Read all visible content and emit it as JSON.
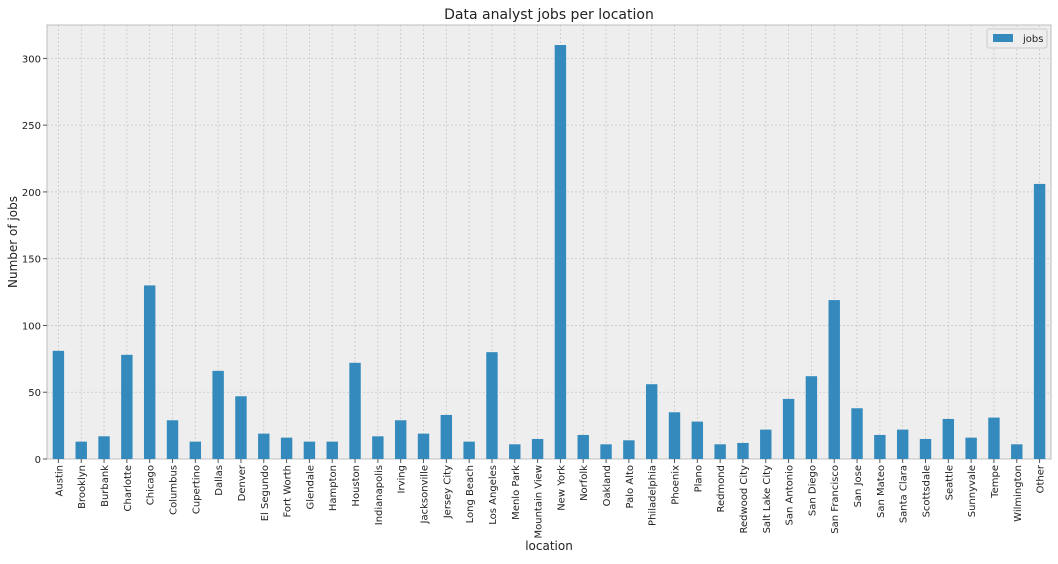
{
  "chart_data": {
    "type": "bar",
    "title": "Data analyst jobs per location",
    "xlabel": "location",
    "ylabel": "Number of jobs",
    "ylim": [
      0,
      325
    ],
    "yticks": [
      0,
      50,
      100,
      150,
      200,
      250,
      300
    ],
    "grid": true,
    "legend": {
      "position": "top-right",
      "entries": [
        "jobs"
      ]
    },
    "bar_color": "#348ABD",
    "background": "#EEEEEE",
    "categories": [
      "Austin",
      "Brooklyn",
      "Burbank",
      "Charlotte",
      "Chicago",
      "Columbus",
      "Cupertino",
      "Dallas",
      "Denver",
      "El Segundo",
      "Fort Worth",
      "Glendale",
      "Hampton",
      "Houston",
      "Indianapolis",
      "Irving",
      "Jacksonville",
      "Jersey City",
      "Long Beach",
      "Los Angeles",
      "Menlo Park",
      "Mountain View",
      "New York",
      "Norfolk",
      "Oakland",
      "Palo Alto",
      "Philadelphia",
      "Phoenix",
      "Plano",
      "Redmond",
      "Redwood City",
      "Salt Lake City",
      "San Antonio",
      "San Diego",
      "San Francisco",
      "San Jose",
      "San Mateo",
      "Santa Clara",
      "Scottsdale",
      "Seattle",
      "Sunnyvale",
      "Tempe",
      "Wilmington",
      "Other"
    ],
    "series": [
      {
        "name": "jobs",
        "values": [
          81,
          13,
          17,
          78,
          130,
          29,
          13,
          66,
          47,
          19,
          16,
          13,
          13,
          72,
          17,
          29,
          19,
          33,
          13,
          80,
          11,
          15,
          310,
          18,
          11,
          14,
          56,
          35,
          28,
          11,
          12,
          22,
          45,
          62,
          119,
          38,
          18,
          22,
          15,
          30,
          16,
          31,
          11,
          206
        ]
      }
    ]
  }
}
